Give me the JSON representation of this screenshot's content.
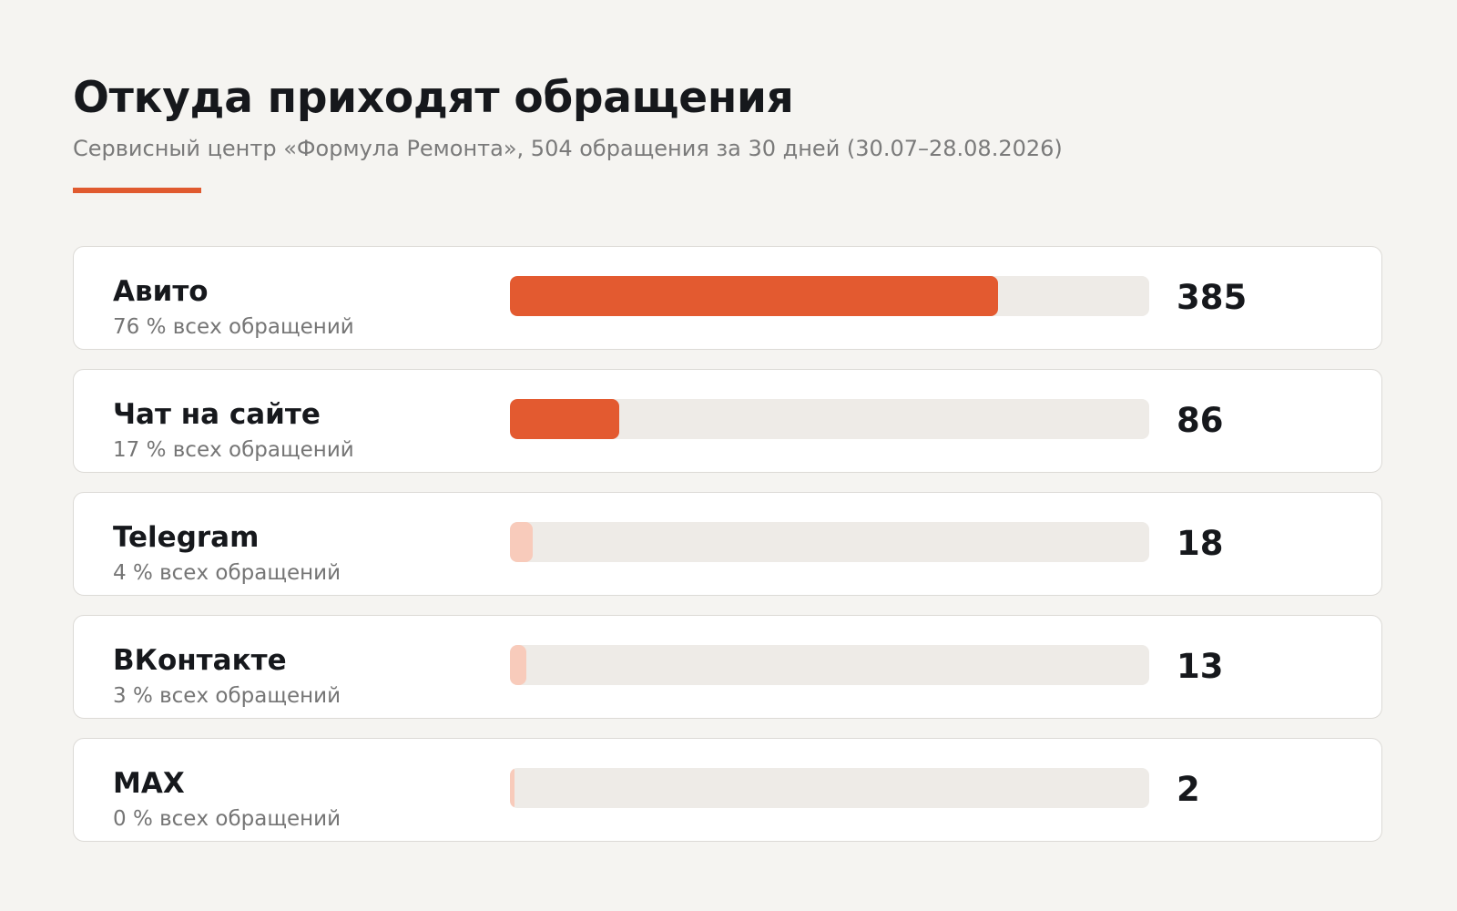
{
  "header": {
    "title": "Откуда приходят обращения",
    "subtitle": "Сервисный центр «Формула Ремонта», 504 обращения за 30 дней (30.07–28.08.2026)"
  },
  "colors": {
    "accent": "#e05a2f",
    "bar_strong": "#e35a30",
    "bar_light": "#f8cbbb",
    "track": "#eeebe7"
  },
  "chart_data": {
    "type": "bar",
    "orientation": "horizontal",
    "title": "Откуда приходят обращения",
    "subtitle": "Сервисный центр «Формула Ремонта», 504 обращения за 30 дней (30.07–28.08.2026)",
    "max_value": 504,
    "rows": [
      {
        "name": "Авито",
        "share": "76 % всех обращений",
        "value": 385,
        "count_label": "385",
        "tone": "strong"
      },
      {
        "name": "Чат на сайте",
        "share": "17 % всех обращений",
        "value": 86,
        "count_label": "86",
        "tone": "strong"
      },
      {
        "name": "Telegram",
        "share": "4 % всех обращений",
        "value": 18,
        "count_label": "18",
        "tone": "light"
      },
      {
        "name": "ВКонтакте",
        "share": "3 % всех обращений",
        "value": 13,
        "count_label": "13",
        "tone": "light"
      },
      {
        "name": "MAX",
        "share": "0 % всех обращений",
        "value": 2,
        "count_label": "2",
        "tone": "light"
      }
    ]
  }
}
